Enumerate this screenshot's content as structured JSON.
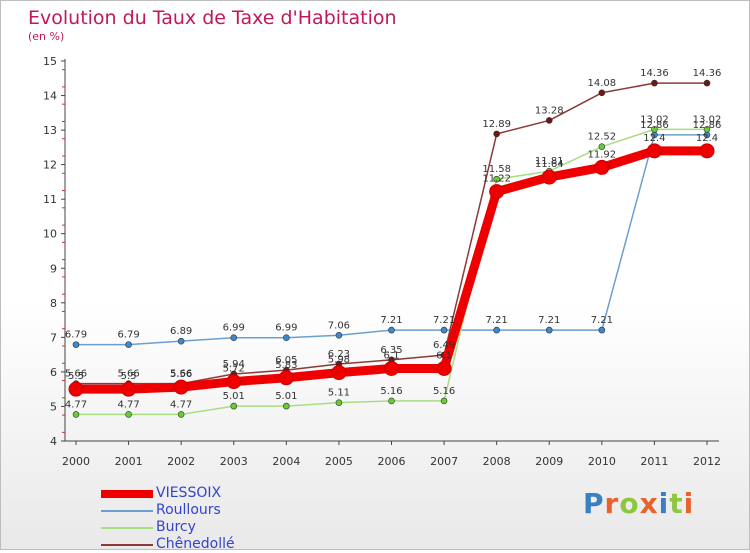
{
  "title": "Evolution du Taux de Taxe d'Habitation",
  "subtitle": "(en %)",
  "brand": "Proxiti",
  "brand_colors": [
    "#3a7fc4",
    "#e8632b",
    "#8dc63f",
    "#e8632b",
    "#3a7fc4",
    "#8dc63f",
    "#e8632b"
  ],
  "chart_data": {
    "type": "line",
    "x": [
      2000,
      2001,
      2002,
      2003,
      2004,
      2005,
      2006,
      2007,
      2008,
      2009,
      2010,
      2011,
      2012
    ],
    "ylim": [
      4,
      15
    ],
    "yticks": [
      4,
      5,
      6,
      7,
      8,
      9,
      10,
      11,
      12,
      13,
      14,
      15
    ],
    "grid": false,
    "legend_position": "bottom-left",
    "series": [
      {
        "name": "Roullours",
        "color": "#6a9fcf",
        "marker_color": "#3a8ad0",
        "values": [
          6.79,
          6.79,
          6.89,
          6.99,
          6.99,
          7.06,
          7.21,
          7.21,
          7.21,
          7.21,
          7.21,
          12.86,
          12.86
        ],
        "labels": [
          "6.79",
          "6.79",
          "6.89",
          "6.99",
          "6.99",
          "7.06",
          "7.21",
          "7.21",
          "7.21",
          "7.21",
          "7.21",
          "12.86",
          "12.86"
        ]
      },
      {
        "name": "Burcy",
        "color": "#a9dd82",
        "marker_color": "#66cc33",
        "values": [
          4.77,
          4.77,
          4.77,
          5.01,
          5.01,
          5.11,
          5.16,
          5.16,
          11.58,
          11.81,
          12.52,
          13.02,
          13.02
        ],
        "labels": [
          "4.77",
          "4.77",
          "4.77",
          "5.01",
          "5.01",
          "5.11",
          "5.16",
          "5.16",
          "11.58",
          "11.81",
          "12.52",
          "13.02",
          "13.02"
        ]
      },
      {
        "name": "Chênedollé",
        "color": "#8b3a3a",
        "marker_color": "#6b1a1a",
        "values": [
          5.66,
          5.66,
          5.66,
          5.94,
          6.05,
          6.23,
          6.35,
          6.49,
          12.89,
          13.28,
          14.08,
          14.36,
          14.36
        ],
        "labels": [
          "5.66",
          "5.66",
          "5.66",
          "5.94",
          "6.05",
          "6.23",
          "6.35",
          "6.49",
          "12.89",
          "13.28",
          "14.08",
          "14.36",
          "14.36"
        ]
      },
      {
        "name": "VIESSOIX",
        "color": "#ee0000",
        "marker_color": "#ee0000",
        "values": [
          5.5,
          5.5,
          5.56,
          5.72,
          5.83,
          5.98,
          6.1,
          6.1,
          11.22,
          11.64,
          11.92,
          12.4,
          12.4
        ],
        "labels": [
          "5.5",
          "5.5",
          "5.56",
          "5.72",
          "5.83",
          "5.98",
          "6.1",
          "6.1",
          "11.22",
          "11.64",
          "11.92",
          "12.4",
          "12.4"
        ]
      }
    ],
    "legend": [
      "VIESSOIX",
      "Roullours",
      "Burcy",
      "Chênedollé"
    ]
  }
}
